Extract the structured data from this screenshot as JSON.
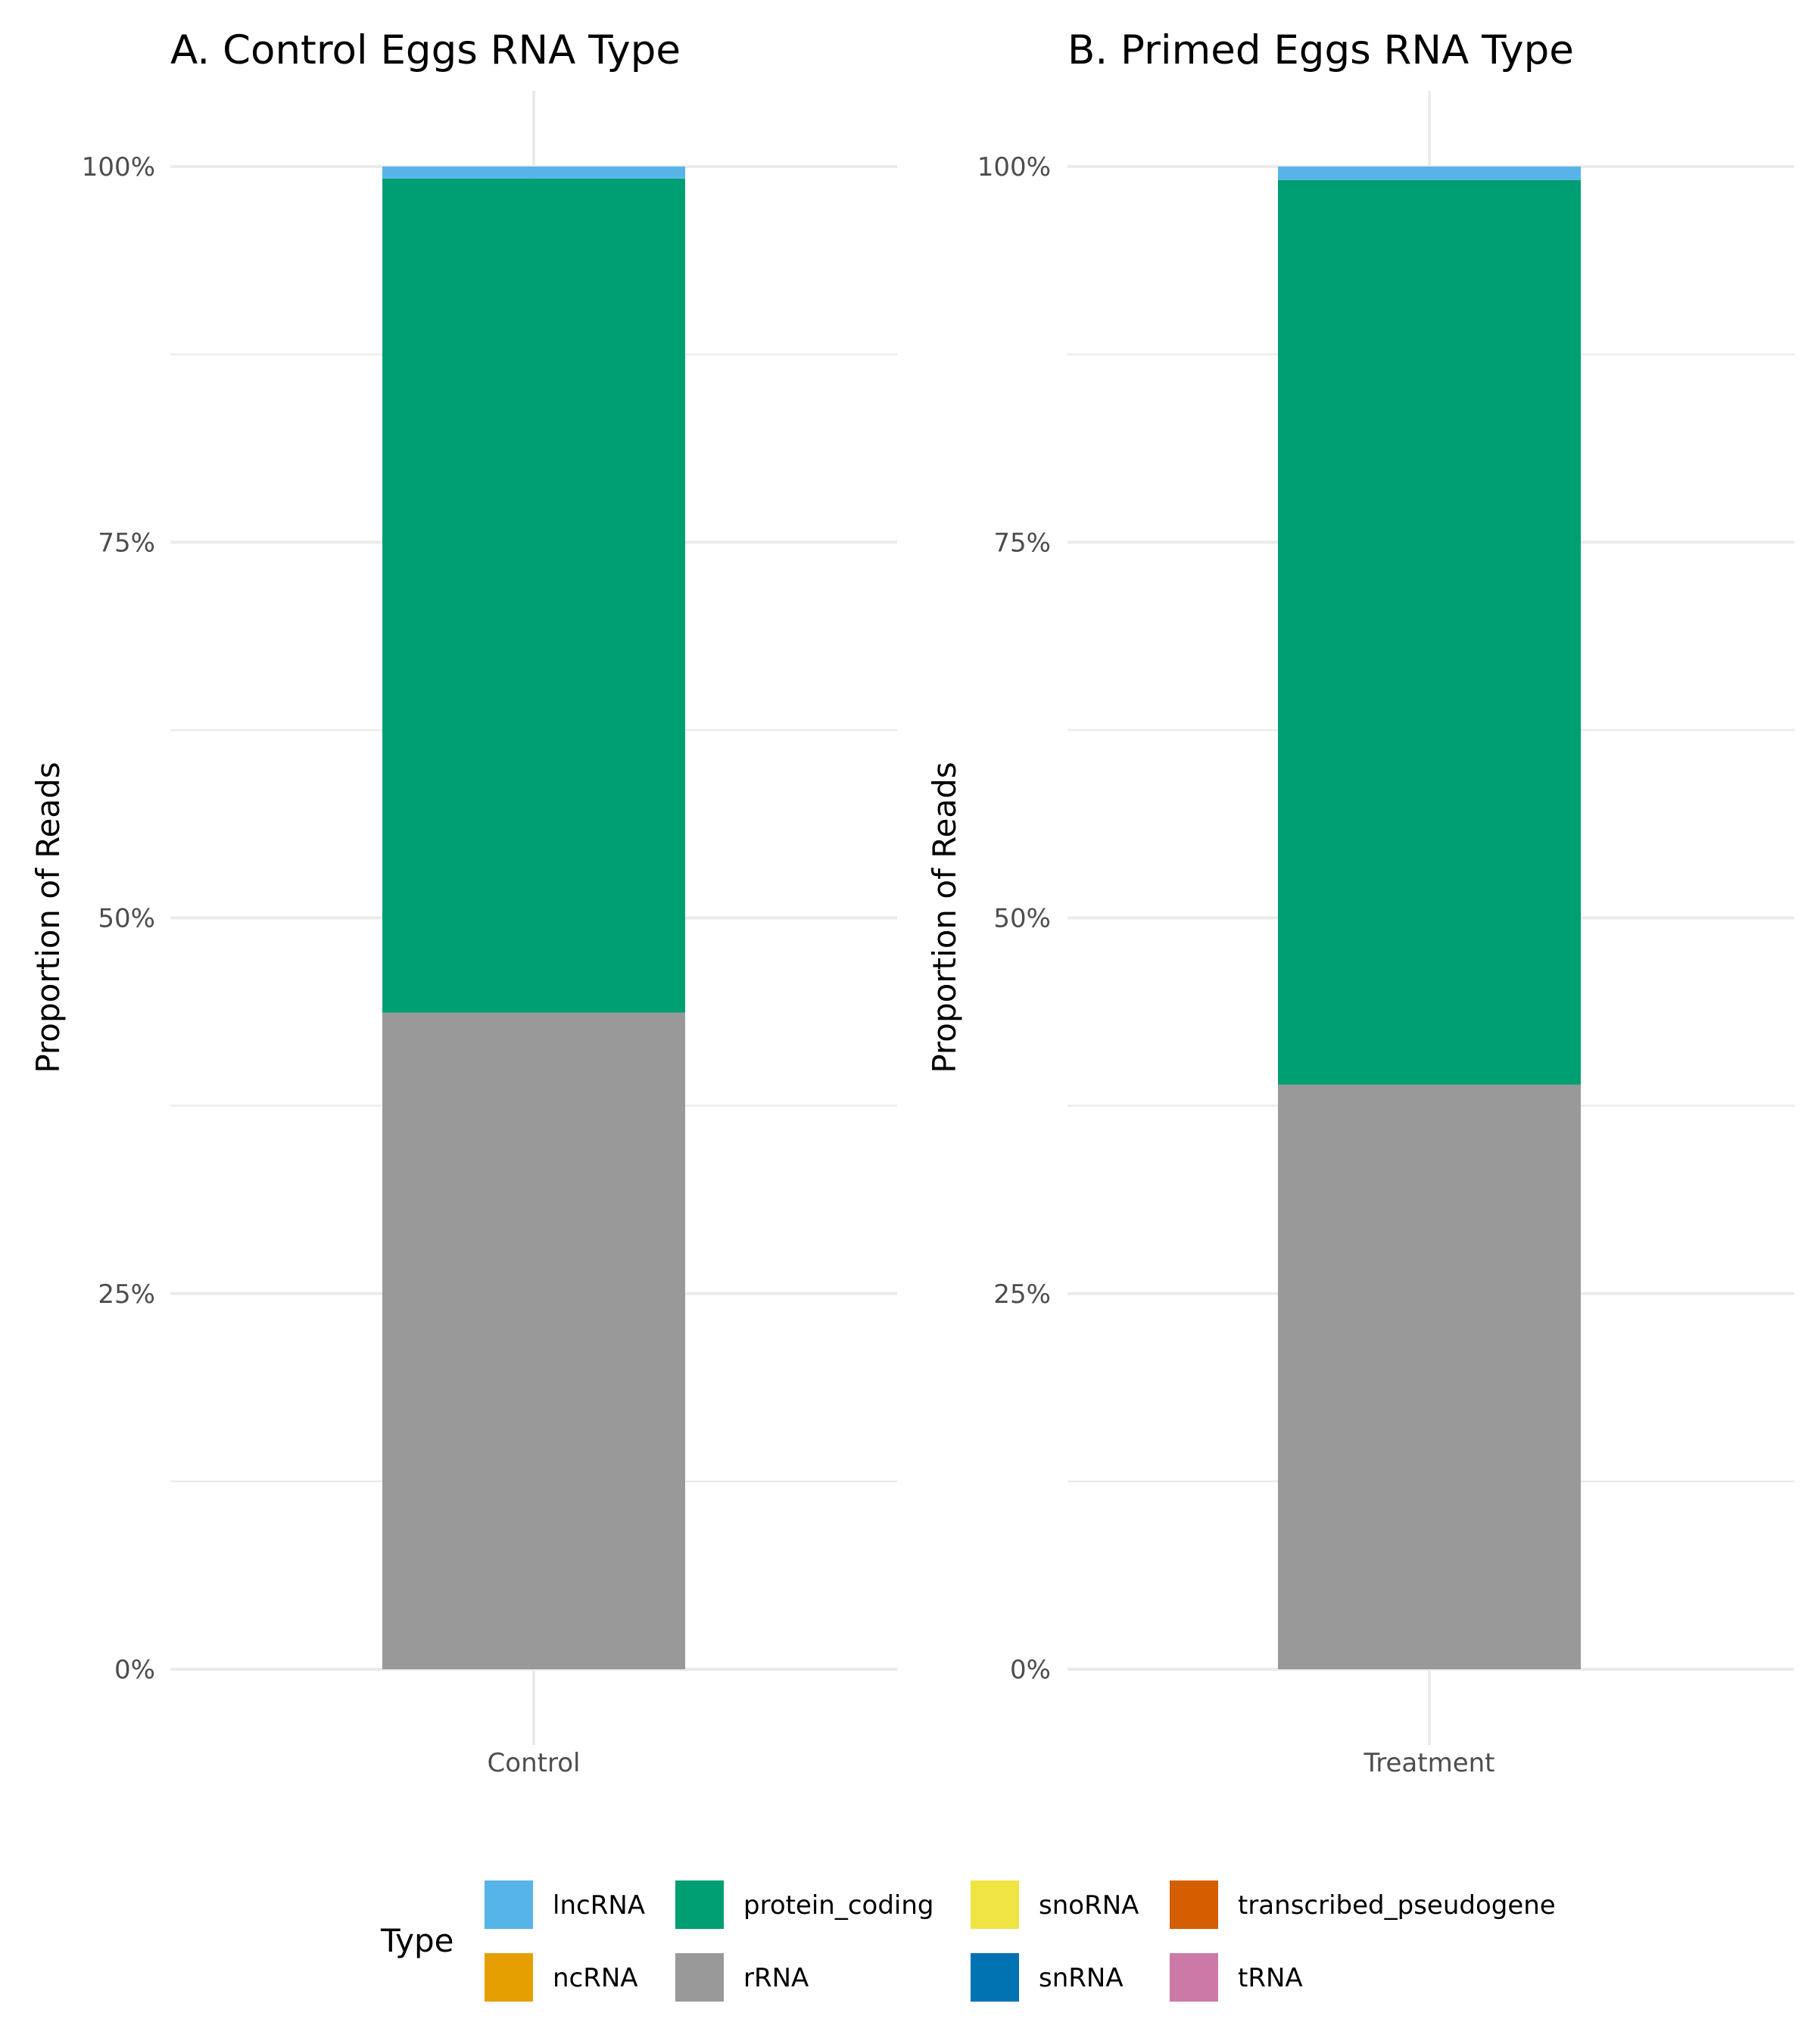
{
  "chart_data": [
    {
      "type": "bar",
      "stacked": true,
      "title": "A. Control Eggs RNA Type",
      "ylabel": "Proportion of Reads",
      "xlabel": "",
      "categories": [
        "Control"
      ],
      "ylim": [
        0,
        1
      ],
      "yticks": [
        "0%",
        "25%",
        "50%",
        "75%",
        "100%"
      ],
      "grid": true,
      "series": [
        {
          "name": "rRNA",
          "values": [
            0.437
          ]
        },
        {
          "name": "protein_coding",
          "values": [
            0.555
          ]
        },
        {
          "name": "lncRNA",
          "values": [
            0.008
          ]
        }
      ]
    },
    {
      "type": "bar",
      "stacked": true,
      "title": "B. Primed Eggs RNA Type",
      "ylabel": "Proportion of Reads",
      "xlabel": "",
      "categories": [
        "Treatment"
      ],
      "ylim": [
        0,
        1
      ],
      "yticks": [
        "0%",
        "25%",
        "50%",
        "75%",
        "100%"
      ],
      "grid": true,
      "series": [
        {
          "name": "rRNA",
          "values": [
            0.389
          ]
        },
        {
          "name": "protein_coding",
          "values": [
            0.602
          ]
        },
        {
          "name": "lncRNA",
          "values": [
            0.009
          ]
        }
      ]
    }
  ],
  "legend": {
    "title": "Type",
    "placement": "bottom",
    "items": [
      {
        "label": "lncRNA",
        "color": "#56B4E9"
      },
      {
        "label": "ncRNA",
        "color": "#E69F00"
      },
      {
        "label": "protein_coding",
        "color": "#009E73"
      },
      {
        "label": "rRNA",
        "color": "#999999"
      },
      {
        "label": "snoRNA",
        "color": "#F0E442"
      },
      {
        "label": "snRNA",
        "color": "#0072B2"
      },
      {
        "label": "transcribed_pseudogene",
        "color": "#D55E00"
      },
      {
        "label": "tRNA",
        "color": "#CC79A7"
      }
    ]
  }
}
